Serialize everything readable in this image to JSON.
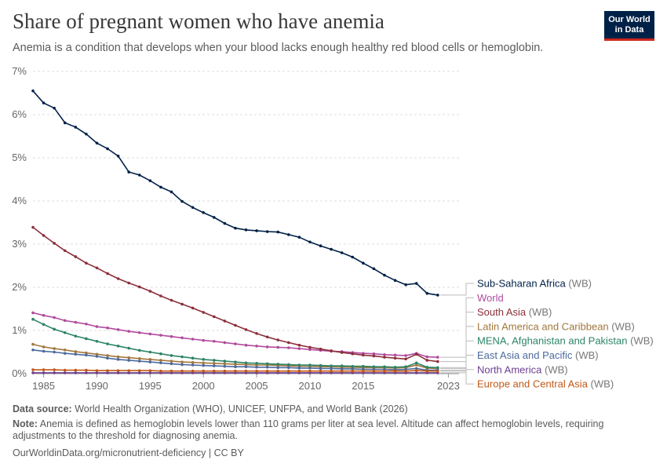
{
  "header": {
    "title": "Share of pregnant women who have anemia",
    "subtitle": "Anemia is a condition that develops when your blood lacks enough healthy red blood cells or hemoglobin.",
    "logo_line1": "Our World",
    "logo_line2": "in Data"
  },
  "footer": {
    "source_label": "Data source:",
    "source_text": "World Health Organization (WHO), UNICEF, UNFPA, and World Bank (2026)",
    "note_label": "Note:",
    "note_text": "Anemia is defined as hemoglobin levels lower than 110 grams per liter at sea level. Altitude can affect hemoglobin levels, requiring adjustments to the threshold for diagnosing anemia.",
    "url": "OurWorldinData.org/micronutrient-deficiency | CC BY"
  },
  "colors": {
    "brand": "#002147",
    "accent": "#ce261e"
  },
  "chart_data": {
    "type": "line",
    "x": [
      1984,
      1985,
      1986,
      1987,
      1988,
      1989,
      1990,
      1991,
      1992,
      1993,
      1994,
      1995,
      1996,
      1997,
      1998,
      1999,
      2000,
      2001,
      2002,
      2003,
      2004,
      2005,
      2006,
      2007,
      2008,
      2009,
      2010,
      2011,
      2012,
      2013,
      2014,
      2015,
      2016,
      2017,
      2018,
      2019,
      2020,
      2021,
      2022,
      2023,
      2024
    ],
    "xticks": [
      1985,
      1990,
      1995,
      2000,
      2005,
      2010,
      2015,
      2023
    ],
    "yticks": [
      "0%",
      "1%",
      "2%",
      "3%",
      "4%",
      "5%",
      "6%",
      "7%"
    ],
    "ylim": [
      0,
      7
    ],
    "grid": "horizontal dashed",
    "legend": "right, labels at line ends",
    "series": [
      {
        "name": "Sub-Saharan Africa",
        "suffix": "(WB)",
        "color": "#002147",
        "values": [
          6.55,
          6.27,
          6.15,
          5.81,
          5.71,
          5.55,
          5.34,
          5.21,
          5.04,
          4.67,
          4.6,
          4.47,
          4.32,
          4.21,
          3.99,
          3.85,
          3.73,
          3.62,
          3.48,
          3.37,
          3.33,
          3.31,
          3.29,
          3.28,
          3.22,
          3.16,
          3.05,
          2.96,
          2.88,
          2.8,
          2.7,
          2.56,
          2.43,
          2.28,
          2.16,
          2.06,
          2.09,
          1.86,
          1.82,
          null,
          null
        ]
      },
      {
        "name": "World",
        "suffix": "",
        "color": "#b24b9e",
        "values": [
          1.41,
          1.35,
          1.3,
          1.23,
          1.19,
          1.15,
          1.09,
          1.06,
          1.02,
          0.98,
          0.95,
          0.92,
          0.89,
          0.86,
          0.83,
          0.8,
          0.77,
          0.75,
          0.72,
          0.69,
          0.66,
          0.64,
          0.62,
          0.61,
          0.6,
          0.58,
          0.56,
          0.54,
          0.52,
          0.51,
          0.49,
          0.47,
          0.46,
          0.44,
          0.43,
          0.42,
          0.47,
          0.39,
          0.38,
          null,
          null
        ]
      },
      {
        "name": "South Asia",
        "suffix": "(WB)",
        "color": "#8c2f3a",
        "values": [
          3.39,
          3.2,
          3.02,
          2.85,
          2.71,
          2.56,
          2.45,
          2.32,
          2.2,
          2.1,
          2.01,
          1.91,
          1.8,
          1.7,
          1.61,
          1.52,
          1.42,
          1.32,
          1.22,
          1.12,
          1.02,
          0.93,
          0.85,
          0.78,
          0.72,
          0.66,
          0.61,
          0.57,
          0.53,
          0.49,
          0.46,
          0.43,
          0.41,
          0.38,
          0.36,
          0.34,
          0.45,
          0.31,
          0.28,
          null,
          null
        ]
      },
      {
        "name": "Latin America and Caribbean",
        "suffix": "(WB)",
        "color": "#a2773d",
        "values": [
          0.68,
          0.62,
          0.58,
          0.55,
          0.51,
          0.48,
          0.45,
          0.42,
          0.39,
          0.37,
          0.35,
          0.33,
          0.31,
          0.29,
          0.27,
          0.26,
          0.25,
          0.24,
          0.23,
          0.22,
          0.21,
          0.2,
          0.2,
          0.19,
          0.18,
          0.17,
          0.17,
          0.16,
          0.16,
          0.15,
          0.15,
          0.14,
          0.14,
          0.14,
          0.13,
          0.14,
          0.2,
          0.13,
          0.12,
          null,
          null
        ]
      },
      {
        "name": "MENA, Afghanistan and Pakistan",
        "suffix": "(WB)",
        "color": "#2c8465",
        "values": [
          1.26,
          1.14,
          1.03,
          0.95,
          0.87,
          0.81,
          0.75,
          0.69,
          0.64,
          0.59,
          0.54,
          0.5,
          0.46,
          0.42,
          0.39,
          0.36,
          0.33,
          0.31,
          0.29,
          0.27,
          0.25,
          0.24,
          0.23,
          0.22,
          0.21,
          0.2,
          0.2,
          0.19,
          0.18,
          0.18,
          0.17,
          0.17,
          0.16,
          0.16,
          0.15,
          0.16,
          0.25,
          0.15,
          0.14,
          null,
          null
        ]
      },
      {
        "name": "East Asia and Pacific",
        "suffix": "(WB)",
        "color": "#4c6a9c",
        "values": [
          0.55,
          0.52,
          0.5,
          0.47,
          0.45,
          0.43,
          0.4,
          0.36,
          0.33,
          0.31,
          0.29,
          0.27,
          0.25,
          0.23,
          0.21,
          0.2,
          0.19,
          0.18,
          0.17,
          0.16,
          0.16,
          0.15,
          0.15,
          0.14,
          0.14,
          0.13,
          0.13,
          0.12,
          0.12,
          0.11,
          0.11,
          0.1,
          0.1,
          0.1,
          0.09,
          0.1,
          0.12,
          0.08,
          0.08,
          null,
          null
        ]
      },
      {
        "name": "North America",
        "suffix": "(WB)",
        "color": "#6d3e91",
        "values": [
          0.02,
          0.02,
          0.02,
          0.02,
          0.02,
          0.02,
          0.02,
          0.02,
          0.02,
          0.02,
          0.02,
          0.02,
          0.02,
          0.02,
          0.02,
          0.02,
          0.02,
          0.02,
          0.02,
          0.02,
          0.02,
          0.02,
          0.02,
          0.02,
          0.02,
          0.02,
          0.02,
          0.02,
          0.02,
          0.02,
          0.02,
          0.02,
          0.02,
          0.02,
          0.02,
          0.02,
          0.02,
          0.02,
          0.02,
          null,
          null
        ]
      },
      {
        "name": "Europe and Central Asia",
        "suffix": "(WB)",
        "color": "#c05917",
        "values": [
          0.09,
          0.09,
          0.09,
          0.08,
          0.08,
          0.08,
          0.07,
          0.07,
          0.07,
          0.07,
          0.07,
          0.07,
          0.06,
          0.06,
          0.06,
          0.06,
          0.06,
          0.06,
          0.06,
          0.06,
          0.06,
          0.06,
          0.06,
          0.06,
          0.06,
          0.06,
          0.06,
          0.06,
          0.06,
          0.06,
          0.06,
          0.06,
          0.06,
          0.06,
          0.06,
          0.06,
          0.07,
          0.06,
          0.06,
          null,
          null
        ]
      }
    ]
  }
}
